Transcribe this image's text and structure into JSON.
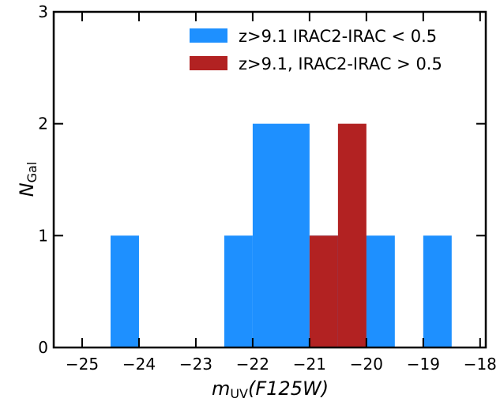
{
  "chart_data": {
    "type": "bar",
    "title": "",
    "xlabel": {
      "m": "m",
      "sub": "UV",
      "rest": "(F125W)"
    },
    "ylabel": {
      "n": "N",
      "sub": "Gal"
    },
    "xlim": [
      -25.5,
      -17.9
    ],
    "ylim": [
      0,
      3
    ],
    "xticks": [
      -25,
      -24,
      -23,
      -22,
      -21,
      -20,
      -19,
      -18
    ],
    "xtick_labels": [
      "−25",
      "−24",
      "−23",
      "−22",
      "−21",
      "−20",
      "−19",
      "−18"
    ],
    "yticks": [
      0,
      1,
      2,
      3
    ],
    "ytick_labels": [
      "0",
      "1",
      "2",
      "3"
    ],
    "legend_position": "top-right",
    "series": [
      {
        "name": "z>9.1 IRAC2-IRAC < 0.5",
        "color": "#1e90ff",
        "bins": [
          {
            "x0": -24.5,
            "x1": -24.0,
            "count": 1
          },
          {
            "x0": -22.5,
            "x1": -22.0,
            "count": 1
          },
          {
            "x0": -22.0,
            "x1": -21.0,
            "count": 2
          },
          {
            "x0": -21.0,
            "x1": -20.0,
            "count": 1
          },
          {
            "x0": -20.0,
            "x1": -19.5,
            "count": 1
          },
          {
            "x0": -19.0,
            "x1": -18.5,
            "count": 1
          }
        ]
      },
      {
        "name": "z>9.1, IRAC2-IRAC > 0.5",
        "color": "#b22222",
        "bins": [
          {
            "x0": -21.0,
            "x1": -20.5,
            "count": 1
          },
          {
            "x0": -20.5,
            "x1": -20.0,
            "count": 2
          }
        ]
      }
    ]
  }
}
